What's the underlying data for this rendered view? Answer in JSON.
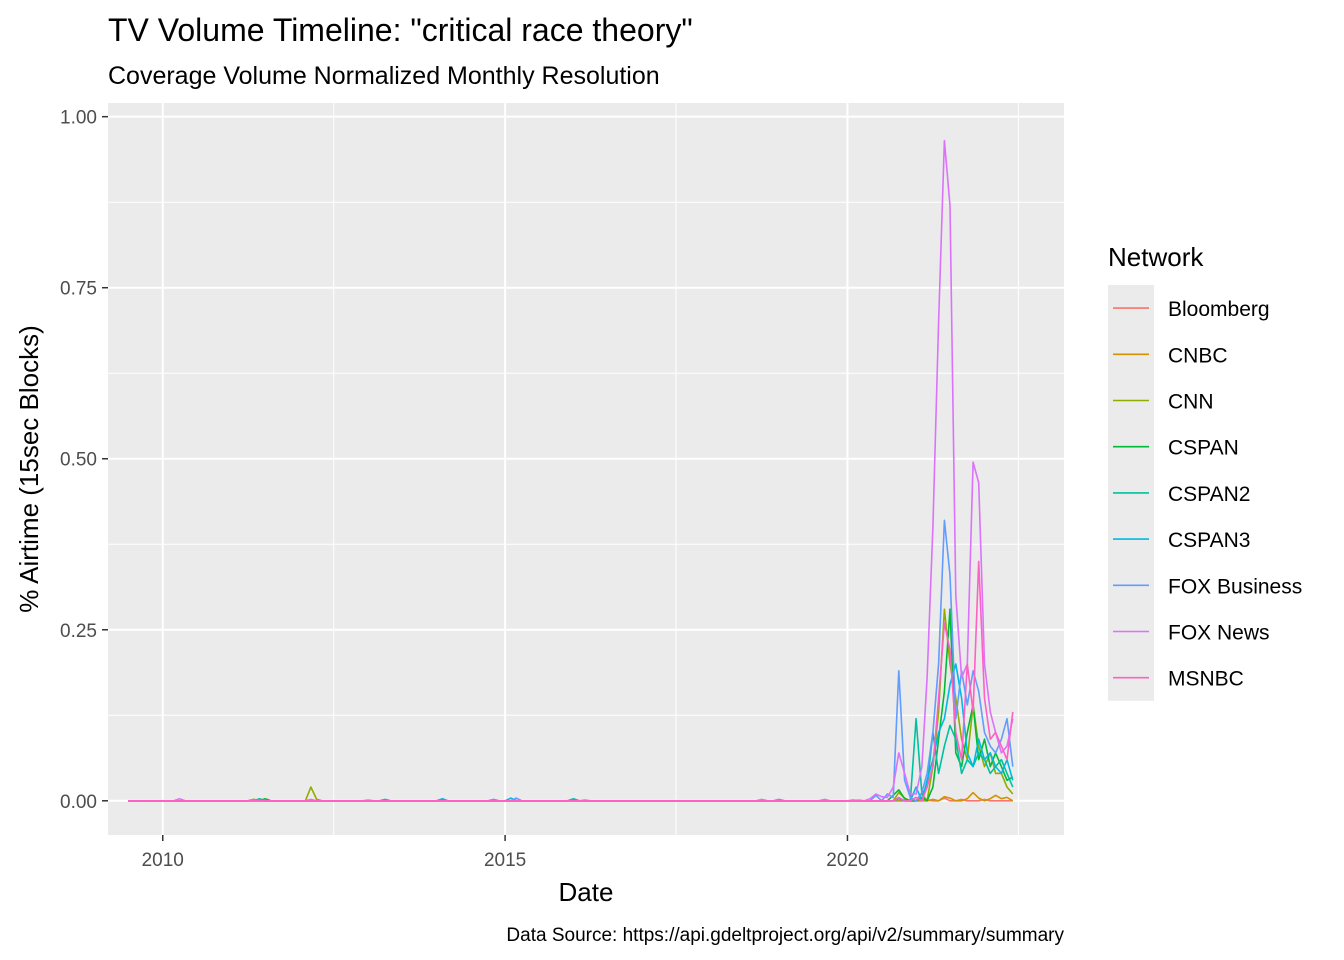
{
  "chart_data": {
    "type": "line",
    "title": "TV Volume Timeline: \"critical race theory\"",
    "subtitle": "Coverage Volume Normalized Monthly Resolution",
    "xlabel": "Date",
    "ylabel": "% Airtime (15sec Blocks)",
    "caption": "Data Source: https://api.gdeltproject.org/api/v2/summary/summary",
    "xlim": [
      "2009-03-15",
      "2023-03-01"
    ],
    "ylim": [
      -0.05,
      1.02
    ],
    "x_ticks": [
      {
        "date": "2010-01-01",
        "label": "2010"
      },
      {
        "date": "2015-01-01",
        "label": "2015"
      },
      {
        "date": "2020-01-01",
        "label": "2020"
      }
    ],
    "x_minor_ticks": [
      "2012-07-01",
      "2017-07-01",
      "2022-07-01"
    ],
    "y_ticks": [
      {
        "value": 0,
        "label": "0.00"
      },
      {
        "value": 0.25,
        "label": "0.25"
      },
      {
        "value": 0.5,
        "label": "0.50"
      },
      {
        "value": 0.75,
        "label": "0.75"
      },
      {
        "value": 1.0,
        "label": "1.00"
      }
    ],
    "y_minor_ticks": [
      0.125,
      0.375,
      0.625,
      0.875
    ],
    "grid": true,
    "legend": {
      "title": "Network",
      "position": "right"
    },
    "baseline": {
      "start": "2009-07-01",
      "end": "2022-06-01"
    },
    "series": [
      {
        "name": "Bloomberg",
        "color": "#F8766D",
        "points": [
          [
            "2011-05-01",
            0.002
          ],
          [
            "2016-03-01",
            0.001
          ],
          [
            "2021-03-01",
            0.001
          ],
          [
            "2021-06-01",
            0.004
          ],
          [
            "2021-09-01",
            0.002
          ],
          [
            "2022-01-01",
            0.002
          ]
        ]
      },
      {
        "name": "CNBC",
        "color": "#D39200",
        "points": [
          [
            "2021-04-01",
            0.002
          ],
          [
            "2021-06-01",
            0.006
          ],
          [
            "2021-07-01",
            0.004
          ],
          [
            "2021-10-01",
            0.003
          ],
          [
            "2021-11-01",
            0.012
          ],
          [
            "2021-12-01",
            0.004
          ],
          [
            "2022-02-01",
            0.003
          ],
          [
            "2022-03-01",
            0.008
          ],
          [
            "2022-04-01",
            0.003
          ],
          [
            "2022-05-01",
            0.005
          ]
        ]
      },
      {
        "name": "CNN",
        "color": "#93AA00",
        "points": [
          [
            "2011-05-01",
            0.002
          ],
          [
            "2012-03-01",
            0.02
          ],
          [
            "2012-04-01",
            0.002
          ],
          [
            "2020-10-01",
            0.012
          ],
          [
            "2020-11-01",
            0.004
          ],
          [
            "2021-02-01",
            0.01
          ],
          [
            "2021-04-01",
            0.05
          ],
          [
            "2021-05-01",
            0.13
          ],
          [
            "2021-06-01",
            0.28
          ],
          [
            "2021-07-01",
            0.2
          ],
          [
            "2021-08-01",
            0.15
          ],
          [
            "2021-09-01",
            0.09
          ],
          [
            "2021-10-01",
            0.06
          ],
          [
            "2021-11-01",
            0.14
          ],
          [
            "2021-12-01",
            0.08
          ],
          [
            "2022-01-01",
            0.05
          ],
          [
            "2022-02-01",
            0.07
          ],
          [
            "2022-03-01",
            0.04
          ],
          [
            "2022-04-01",
            0.04
          ],
          [
            "2022-05-01",
            0.02
          ],
          [
            "2022-06-01",
            0.01
          ]
        ]
      },
      {
        "name": "CSPAN",
        "color": "#00BA38",
        "points": [
          [
            "2011-07-01",
            0.003
          ],
          [
            "2014-02-01",
            0.002
          ],
          [
            "2020-09-01",
            0.008
          ],
          [
            "2020-10-01",
            0.016
          ],
          [
            "2020-11-01",
            0.003
          ],
          [
            "2021-02-01",
            0.005
          ],
          [
            "2021-04-01",
            0.02
          ],
          [
            "2021-05-01",
            0.09
          ],
          [
            "2021-06-01",
            0.16
          ],
          [
            "2021-07-01",
            0.28
          ],
          [
            "2021-08-01",
            0.07
          ],
          [
            "2021-09-01",
            0.05
          ],
          [
            "2021-10-01",
            0.1
          ],
          [
            "2021-11-01",
            0.14
          ],
          [
            "2021-12-01",
            0.06
          ],
          [
            "2022-01-01",
            0.09
          ],
          [
            "2022-02-01",
            0.05
          ],
          [
            "2022-03-01",
            0.07
          ],
          [
            "2022-04-01",
            0.05
          ],
          [
            "2022-05-01",
            0.03
          ],
          [
            "2022-06-01",
            0.035
          ]
        ]
      },
      {
        "name": "CSPAN2",
        "color": "#00C19F",
        "points": [
          [
            "2011-06-01",
            0.003
          ],
          [
            "2016-01-01",
            0.003
          ],
          [
            "2020-10-01",
            0.004
          ],
          [
            "2021-01-01",
            0.12
          ],
          [
            "2021-02-01",
            0.01
          ],
          [
            "2021-03-01",
            0.02
          ],
          [
            "2021-04-01",
            0.1
          ],
          [
            "2021-05-01",
            0.04
          ],
          [
            "2021-06-01",
            0.08
          ],
          [
            "2021-07-01",
            0.11
          ],
          [
            "2021-08-01",
            0.09
          ],
          [
            "2021-09-01",
            0.04
          ],
          [
            "2021-10-01",
            0.06
          ],
          [
            "2021-11-01",
            0.05
          ],
          [
            "2021-12-01",
            0.07
          ],
          [
            "2022-01-01",
            0.06
          ],
          [
            "2022-02-01",
            0.04
          ],
          [
            "2022-03-01",
            0.05
          ],
          [
            "2022-04-01",
            0.06
          ],
          [
            "2022-05-01",
            0.04
          ],
          [
            "2022-06-01",
            0.02
          ]
        ]
      },
      {
        "name": "CSPAN3",
        "color": "#00B9E3",
        "points": [
          [
            "2013-04-01",
            0.002
          ],
          [
            "2014-02-01",
            0.003
          ],
          [
            "2015-02-01",
            0.004
          ],
          [
            "2016-01-01",
            0.002
          ],
          [
            "2020-10-01",
            0.003
          ],
          [
            "2021-01-01",
            0.02
          ],
          [
            "2021-03-01",
            0.03
          ],
          [
            "2021-04-01",
            0.06
          ],
          [
            "2021-05-01",
            0.1
          ],
          [
            "2021-06-01",
            0.12
          ],
          [
            "2021-07-01",
            0.17
          ],
          [
            "2021-08-01",
            0.2
          ],
          [
            "2021-09-01",
            0.15
          ],
          [
            "2021-10-01",
            0.07
          ],
          [
            "2021-11-01",
            0.05
          ],
          [
            "2021-12-01",
            0.09
          ],
          [
            "2022-01-01",
            0.06
          ],
          [
            "2022-02-01",
            0.07
          ],
          [
            "2022-03-01",
            0.05
          ],
          [
            "2022-04-01",
            0.04
          ],
          [
            "2022-05-01",
            0.06
          ],
          [
            "2022-06-01",
            0.03
          ]
        ]
      },
      {
        "name": "FOX Business",
        "color": "#619CFF",
        "points": [
          [
            "2014-11-01",
            0.002
          ],
          [
            "2015-03-01",
            0.004
          ],
          [
            "2019-01-01",
            0.002
          ],
          [
            "2020-02-01",
            0.001
          ],
          [
            "2020-06-01",
            0.008
          ],
          [
            "2020-08-01",
            0.01
          ],
          [
            "2020-09-01",
            0.005
          ],
          [
            "2020-10-01",
            0.19
          ],
          [
            "2020-11-01",
            0.03
          ],
          [
            "2020-12-01",
            0.005
          ],
          [
            "2021-02-01",
            0.012
          ],
          [
            "2021-03-01",
            0.04
          ],
          [
            "2021-04-01",
            0.1
          ],
          [
            "2021-05-01",
            0.2
          ],
          [
            "2021-06-01",
            0.41
          ],
          [
            "2021-07-01",
            0.33
          ],
          [
            "2021-08-01",
            0.12
          ],
          [
            "2021-09-01",
            0.19
          ],
          [
            "2021-10-01",
            0.14
          ],
          [
            "2021-11-01",
            0.19
          ],
          [
            "2021-12-01",
            0.16
          ],
          [
            "2022-01-01",
            0.1
          ],
          [
            "2022-02-01",
            0.08
          ],
          [
            "2022-03-01",
            0.07
          ],
          [
            "2022-04-01",
            0.09
          ],
          [
            "2022-05-01",
            0.12
          ],
          [
            "2022-06-01",
            0.05
          ]
        ]
      },
      {
        "name": "FOX News",
        "color": "#DB72FB",
        "points": [
          [
            "2010-04-01",
            0.003
          ],
          [
            "2011-05-01",
            0.001
          ],
          [
            "2012-03-01",
            0.002
          ],
          [
            "2013-01-01",
            0.001
          ],
          [
            "2018-10-01",
            0.002
          ],
          [
            "2019-09-01",
            0.002
          ],
          [
            "2020-03-01",
            0.001
          ],
          [
            "2020-05-01",
            0.003
          ],
          [
            "2020-06-01",
            0.01
          ],
          [
            "2020-07-01",
            0.006
          ],
          [
            "2020-08-01",
            0.005
          ],
          [
            "2020-09-01",
            0.02
          ],
          [
            "2020-10-01",
            0.07
          ],
          [
            "2020-11-01",
            0.04
          ],
          [
            "2020-12-01",
            0.01
          ],
          [
            "2021-01-01",
            0.01
          ],
          [
            "2021-02-01",
            0.05
          ],
          [
            "2021-03-01",
            0.18
          ],
          [
            "2021-04-01",
            0.4
          ],
          [
            "2021-05-01",
            0.7
          ],
          [
            "2021-06-01",
            0.965
          ],
          [
            "2021-07-01",
            0.87
          ],
          [
            "2021-08-01",
            0.3
          ],
          [
            "2021-09-01",
            0.18
          ],
          [
            "2021-10-01",
            0.2
          ],
          [
            "2021-11-01",
            0.495
          ],
          [
            "2021-12-01",
            0.465
          ],
          [
            "2022-01-01",
            0.2
          ],
          [
            "2022-02-01",
            0.13
          ],
          [
            "2022-03-01",
            0.1
          ],
          [
            "2022-04-01",
            0.07
          ],
          [
            "2022-05-01",
            0.08
          ],
          [
            "2022-06-01",
            0.12
          ]
        ]
      },
      {
        "name": "MSNBC",
        "color": "#FF61C3",
        "points": [
          [
            "2011-05-01",
            0.001
          ],
          [
            "2020-10-01",
            0.005
          ],
          [
            "2021-01-01",
            0.005
          ],
          [
            "2021-03-01",
            0.02
          ],
          [
            "2021-04-01",
            0.05
          ],
          [
            "2021-05-01",
            0.15
          ],
          [
            "2021-06-01",
            0.26
          ],
          [
            "2021-07-01",
            0.22
          ],
          [
            "2021-08-01",
            0.1
          ],
          [
            "2021-09-01",
            0.06
          ],
          [
            "2021-10-01",
            0.2
          ],
          [
            "2021-11-01",
            0.13
          ],
          [
            "2021-12-01",
            0.35
          ],
          [
            "2022-01-01",
            0.15
          ],
          [
            "2022-02-01",
            0.09
          ],
          [
            "2022-03-01",
            0.1
          ],
          [
            "2022-04-01",
            0.08
          ],
          [
            "2022-05-01",
            0.06
          ],
          [
            "2022-06-01",
            0.13
          ]
        ]
      }
    ]
  }
}
